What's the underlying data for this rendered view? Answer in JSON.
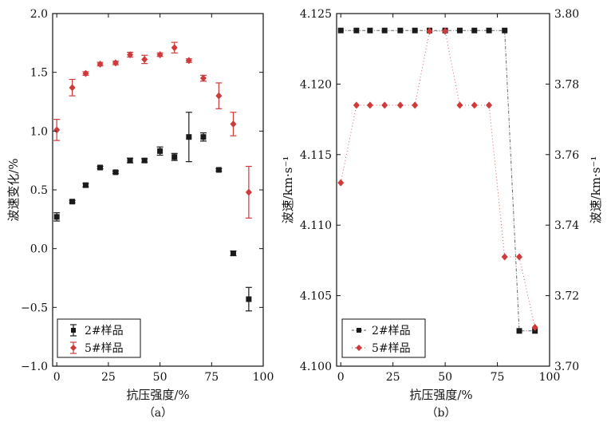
{
  "colors": {
    "series1": "#1a1a1a",
    "series2": "#d13a3a",
    "line": "#888888"
  },
  "chart_data": [
    {
      "type": "scatter",
      "caption": "（a）",
      "xlabel": "抗压强度/%",
      "ylabel": "波速变化/%",
      "xlim": [
        -2,
        100
      ],
      "ylim": [
        -1.0,
        2.0
      ],
      "xticks": [
        "0",
        "25",
        "50",
        "75",
        "100"
      ],
      "yticks": [
        "−1.0",
        "−0.5",
        "0.0",
        "0.5",
        "1.0",
        "1.5",
        "2.0"
      ],
      "legend": {
        "position": "bottom-left",
        "labels": [
          "2#样品",
          "5#样品"
        ]
      },
      "series": [
        {
          "name": "2#样品",
          "marker": "square",
          "x": [
            0,
            7.5,
            14,
            21,
            28.5,
            35.5,
            42.5,
            50,
            57,
            64,
            71,
            78.5,
            85.5,
            93
          ],
          "y": [
            0.27,
            0.4,
            0.54,
            0.69,
            0.65,
            0.75,
            0.75,
            0.83,
            0.78,
            0.95,
            0.95,
            0.67,
            -0.04,
            -0.43
          ],
          "err": [
            0.035,
            0.01,
            0.015,
            0.01,
            0.01,
            0.02,
            0.015,
            0.035,
            0.03,
            0.21,
            0.035,
            0.01,
            0.02,
            0.1
          ]
        },
        {
          "name": "5#样品",
          "marker": "diamond",
          "x": [
            0,
            7.5,
            14,
            21,
            28.5,
            35.5,
            42.5,
            50,
            57,
            64,
            71,
            78.5,
            85.5,
            93
          ],
          "y": [
            1.01,
            1.37,
            1.49,
            1.57,
            1.58,
            1.65,
            1.61,
            1.65,
            1.71,
            1.6,
            1.45,
            1.3,
            1.06,
            0.48
          ],
          "err": [
            0.09,
            0.07,
            0.015,
            0.015,
            0.015,
            0.02,
            0.035,
            0.015,
            0.045,
            0.015,
            0.025,
            0.11,
            0.1,
            0.22
          ]
        }
      ]
    },
    {
      "type": "line",
      "caption": "（b）",
      "xlabel": "抗压强度/%",
      "ylabel_left": "波速/km·s⁻¹",
      "ylabel_right": "波速/km·s⁻¹",
      "xlim": [
        -2,
        100
      ],
      "ylim_left": [
        4.1,
        4.125
      ],
      "ylim_right": [
        3.7,
        3.8
      ],
      "xticks": [
        "0",
        "25",
        "50",
        "75",
        "100"
      ],
      "yticks_left": [
        "4.100",
        "4.105",
        "4.110",
        "4.115",
        "4.120",
        "4.125"
      ],
      "yticks_right": [
        "3.70",
        "3.72",
        "3.74",
        "3.76",
        "3.78",
        "3.80"
      ],
      "legend": {
        "position": "bottom-left",
        "labels": [
          "2#样品",
          "5#样品"
        ]
      },
      "series": [
        {
          "name": "2#样品",
          "axis": "left",
          "marker": "square",
          "x": [
            0,
            7.5,
            14,
            21,
            28.5,
            35.5,
            42.5,
            50,
            57,
            64,
            71,
            78.5,
            85.5,
            93
          ],
          "y": [
            4.1238,
            4.1238,
            4.1238,
            4.1238,
            4.1238,
            4.1238,
            4.1238,
            4.1238,
            4.1238,
            4.1238,
            4.1238,
            4.1238,
            4.1025,
            4.1025
          ]
        },
        {
          "name": "5#样品",
          "axis": "right",
          "marker": "diamond",
          "x": [
            0,
            7.5,
            14,
            21,
            28.5,
            35.5,
            42.5,
            50,
            57,
            64,
            71,
            78.5,
            85.5,
            93
          ],
          "y": [
            3.752,
            3.774,
            3.774,
            3.774,
            3.774,
            3.774,
            3.795,
            3.795,
            3.774,
            3.774,
            3.774,
            3.731,
            3.731,
            3.711
          ]
        }
      ]
    }
  ]
}
